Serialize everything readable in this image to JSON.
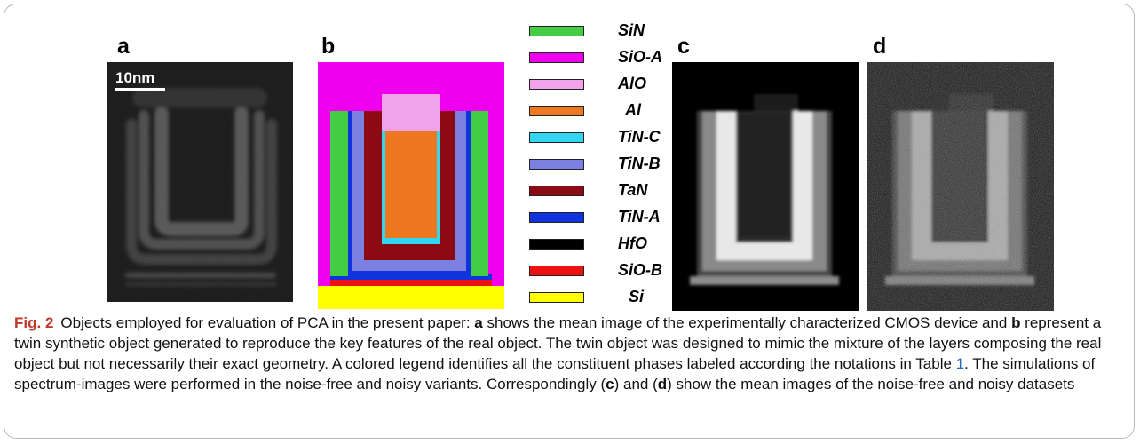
{
  "figure": {
    "panel_labels": {
      "a": "a",
      "b": "b",
      "c": "c",
      "d": "d"
    },
    "scalebar_label": "10nm",
    "legend": [
      {
        "label": "SiN",
        "color": "#44cc44"
      },
      {
        "label": "SiO-A",
        "color": "#ee00ee"
      },
      {
        "label": "AlO",
        "color": "#f2a2e8"
      },
      {
        "label": "Al",
        "color": "#ee7722"
      },
      {
        "label": "TiN-C",
        "color": "#33d6f0"
      },
      {
        "label": "TiN-B",
        "color": "#7a7fe0"
      },
      {
        "label": "TaN",
        "color": "#8b0a14"
      },
      {
        "label": "TiN-A",
        "color": "#1133dd"
      },
      {
        "label": "HfO",
        "color": "#000000"
      },
      {
        "label": "SiO-B",
        "color": "#ee1111"
      },
      {
        "label": "Si",
        "color": "#ffff00"
      }
    ]
  },
  "caption": {
    "fig_number": "Fig. 2",
    "t1": "Objects employed for evaluation of PCA in the present paper: ",
    "b1": "a",
    "t2": " shows the mean image of the experimentally characterized CMOS device and ",
    "b2": "b",
    "t3": " represent a twin synthetic object generated to reproduce the key features of the real object. The twin object was designed to mimic the mixture of the layers composing the real object but not necessarily their exact geometry. A colored legend identifies all the constituent phases labeled according the notations in Table ",
    "link": "1",
    "t4": ". The simulations of spectrum-images were performed in the noise-free and noisy variants. Correspondingly (",
    "b3": "c",
    "t5": ") and (",
    "b4": "d",
    "t6": ") show the mean images of the noise-free and noisy datasets"
  }
}
